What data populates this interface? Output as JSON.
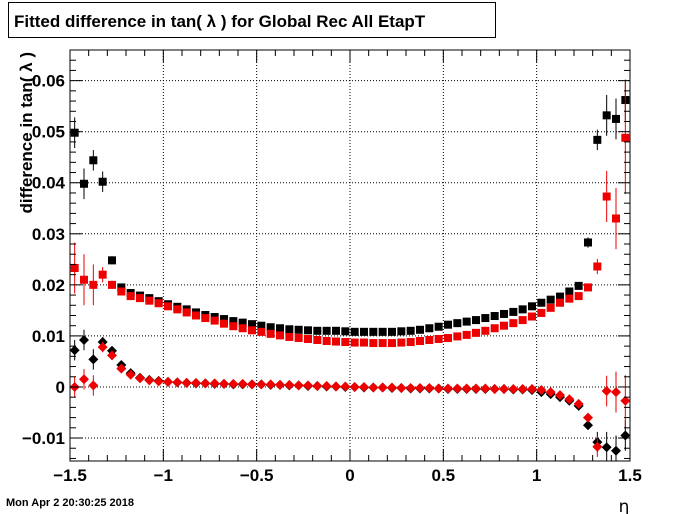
{
  "title": "Fitted difference in tan( λ ) for Global Rec All EtapT",
  "timestamp": "Mon Apr  2 20:30:25 2018",
  "chart_data": {
    "type": "scatter",
    "title": "Fitted difference in tan( λ ) for Global Rec All EtapT",
    "xlabel": "η",
    "ylabel": "difference in tan( λ )",
    "xlim": [
      -1.5,
      1.5
    ],
    "ylim": [
      -0.0145,
      0.066
    ],
    "grid": true,
    "x_ticks": [
      -1.5,
      -1,
      -0.5,
      0,
      0.5,
      1,
      1.5
    ],
    "x_tick_labels": [
      "−1.5",
      "−1",
      "−0.5",
      "0",
      "0.5",
      "1",
      "1.5"
    ],
    "y_ticks": [
      -0.01,
      0,
      0.01,
      0.02,
      0.03,
      0.04,
      0.05,
      0.06
    ],
    "y_tick_labels": [
      "−0.01",
      "0",
      "0.01",
      "0.02",
      "0.03",
      "0.04",
      "0.05",
      "0.06"
    ],
    "x": [
      -1.475,
      -1.425,
      -1.375,
      -1.325,
      -1.275,
      -1.225,
      -1.175,
      -1.125,
      -1.075,
      -1.025,
      -0.975,
      -0.925,
      -0.875,
      -0.825,
      -0.775,
      -0.725,
      -0.675,
      -0.625,
      -0.575,
      -0.525,
      -0.475,
      -0.425,
      -0.375,
      -0.325,
      -0.275,
      -0.225,
      -0.175,
      -0.125,
      -0.075,
      -0.025,
      0.025,
      0.075,
      0.125,
      0.175,
      0.225,
      0.275,
      0.325,
      0.375,
      0.425,
      0.475,
      0.525,
      0.575,
      0.625,
      0.675,
      0.725,
      0.775,
      0.825,
      0.875,
      0.925,
      0.975,
      1.025,
      1.075,
      1.125,
      1.175,
      1.225,
      1.275,
      1.325,
      1.375,
      1.425,
      1.475
    ],
    "series": [
      {
        "color": "#000000",
        "marker": "square",
        "values": [
          0.0498,
          0.0398,
          0.0444,
          0.0402,
          0.0248,
          0.0195,
          0.0184,
          0.0179,
          0.0174,
          0.0168,
          0.0162,
          0.0157,
          0.0152,
          0.0146,
          0.0141,
          0.0137,
          0.0133,
          0.0129,
          0.0126,
          0.0123,
          0.012,
          0.0117,
          0.0115,
          0.0113,
          0.0112,
          0.0111,
          0.011,
          0.011,
          0.011,
          0.0109,
          0.0108,
          0.0108,
          0.0108,
          0.0108,
          0.0108,
          0.0109,
          0.011,
          0.0112,
          0.0115,
          0.0118,
          0.0122,
          0.0125,
          0.0128,
          0.0131,
          0.0135,
          0.0139,
          0.0143,
          0.0147,
          0.0152,
          0.0158,
          0.0165,
          0.0171,
          0.0177,
          0.0187,
          0.0198,
          0.0283,
          0.0484,
          0.0532,
          0.0525,
          0.0562
        ],
        "errors": [
          0.003,
          0.003,
          0.002,
          0.002,
          0.0008,
          0.0005,
          0.0004,
          0.0003,
          0.0003,
          0.0003,
          0.0003,
          0.0003,
          0.0003,
          0.0003,
          0.0003,
          0.0003,
          0.0003,
          0.0003,
          0.0003,
          0.0003,
          0.0003,
          0.0003,
          0.0003,
          0.0003,
          0.0003,
          0.0003,
          0.0003,
          0.0003,
          0.0003,
          0.0003,
          0.0003,
          0.0003,
          0.0003,
          0.0003,
          0.0003,
          0.0003,
          0.0003,
          0.0003,
          0.0003,
          0.0003,
          0.0003,
          0.0003,
          0.0003,
          0.0003,
          0.0003,
          0.0003,
          0.0003,
          0.0003,
          0.0003,
          0.0003,
          0.0003,
          0.0003,
          0.0004,
          0.0004,
          0.0005,
          0.001,
          0.002,
          0.004,
          0.004,
          0.004
        ]
      },
      {
        "color": "#ee0000",
        "marker": "square",
        "values": [
          0.0233,
          0.021,
          0.02,
          0.022,
          0.02,
          0.0187,
          0.0178,
          0.0174,
          0.0169,
          0.0164,
          0.0158,
          0.0152,
          0.0146,
          0.014,
          0.0135,
          0.013,
          0.0124,
          0.0119,
          0.0115,
          0.0111,
          0.0108,
          0.0104,
          0.0101,
          0.0098,
          0.0096,
          0.0094,
          0.0092,
          0.009,
          0.0089,
          0.0088,
          0.0087,
          0.0087,
          0.0086,
          0.0086,
          0.0086,
          0.0087,
          0.0088,
          0.009,
          0.0092,
          0.0094,
          0.0096,
          0.0099,
          0.0102,
          0.0106,
          0.011,
          0.0115,
          0.012,
          0.0125,
          0.0131,
          0.0138,
          0.0145,
          0.0155,
          0.0165,
          0.0173,
          0.0178,
          0.0195,
          0.0236,
          0.0373,
          0.033,
          0.0488
        ],
        "errors": [
          0.005,
          0.005,
          0.004,
          0.0015,
          0.0008,
          0.0005,
          0.0004,
          0.0003,
          0.0003,
          0.0003,
          0.0003,
          0.0003,
          0.0003,
          0.0003,
          0.0003,
          0.0003,
          0.0003,
          0.0003,
          0.0003,
          0.0003,
          0.0003,
          0.0003,
          0.0003,
          0.0003,
          0.0003,
          0.0003,
          0.0003,
          0.0003,
          0.0003,
          0.0003,
          0.0003,
          0.0003,
          0.0003,
          0.0003,
          0.0003,
          0.0003,
          0.0003,
          0.0003,
          0.0003,
          0.0003,
          0.0003,
          0.0003,
          0.0003,
          0.0003,
          0.0003,
          0.0003,
          0.0003,
          0.0003,
          0.0003,
          0.0003,
          0.0003,
          0.0003,
          0.0004,
          0.0004,
          0.0005,
          0.0008,
          0.0015,
          0.005,
          0.006,
          0.011
        ]
      },
      {
        "color": "#000000",
        "marker": "diamond",
        "values": [
          0.0072,
          0.0092,
          0.0054,
          0.0088,
          0.0071,
          0.0043,
          0.0027,
          0.0018,
          0.0014,
          0.0012,
          0.001,
          0.0009,
          0.0008,
          0.0007,
          0.0007,
          0.0006,
          0.0006,
          0.0005,
          0.0005,
          0.0005,
          0.0005,
          0.0004,
          0.0004,
          0.0003,
          0.0003,
          0.0002,
          0.0002,
          0.0001,
          0.0001,
          0.0,
          0.0,
          -0.0001,
          -0.0001,
          -0.0001,
          -0.0002,
          -0.0002,
          -0.0003,
          -0.0003,
          -0.0003,
          -0.0003,
          -0.0004,
          -0.0004,
          -0.0004,
          -0.0004,
          -0.0004,
          -0.0004,
          -0.0004,
          -0.0005,
          -0.0005,
          -0.0006,
          -0.001,
          -0.0014,
          -0.002,
          -0.0027,
          -0.0037,
          -0.0075,
          -0.0108,
          -0.0118,
          -0.0125,
          -0.0095
        ],
        "errors": [
          0.002,
          0.002,
          0.002,
          0.001,
          0.0008,
          0.0005,
          0.0003,
          0.0002,
          0.0002,
          0.0002,
          0.0002,
          0.0002,
          0.0002,
          0.0002,
          0.0002,
          0.0002,
          0.0002,
          0.0002,
          0.0002,
          0.0002,
          0.0002,
          0.0002,
          0.0002,
          0.0002,
          0.0002,
          0.0002,
          0.0002,
          0.0002,
          0.0002,
          0.0002,
          0.0002,
          0.0002,
          0.0002,
          0.0002,
          0.0002,
          0.0002,
          0.0002,
          0.0002,
          0.0002,
          0.0002,
          0.0002,
          0.0002,
          0.0002,
          0.0002,
          0.0002,
          0.0002,
          0.0002,
          0.0002,
          0.0002,
          0.0002,
          0.0002,
          0.0002,
          0.0002,
          0.0002,
          0.0003,
          0.0008,
          0.002,
          0.003,
          0.003,
          0.003
        ]
      },
      {
        "color": "#ee0000",
        "marker": "diamond",
        "values": [
          0.0,
          0.0015,
          0.0003,
          0.0078,
          0.0062,
          0.0036,
          0.0024,
          0.0017,
          0.0013,
          0.0011,
          0.001,
          0.0009,
          0.0008,
          0.0008,
          0.0007,
          0.0007,
          0.0006,
          0.0006,
          0.0006,
          0.0005,
          0.0005,
          0.0005,
          0.0004,
          0.0004,
          0.0003,
          0.0003,
          0.0002,
          0.0002,
          0.0001,
          0.0001,
          0.0,
          0.0,
          -0.0001,
          -0.0001,
          -0.0001,
          -0.0002,
          -0.0002,
          -0.0002,
          -0.0002,
          -0.0003,
          -0.0003,
          -0.0003,
          -0.0003,
          -0.0003,
          -0.0003,
          -0.0004,
          -0.0004,
          -0.0004,
          -0.0004,
          -0.0004,
          -0.0006,
          -0.001,
          -0.0016,
          -0.0024,
          -0.0033,
          -0.006,
          -0.0117,
          -0.0008,
          -0.001,
          -0.0027
        ],
        "errors": [
          0.002,
          0.002,
          0.002,
          0.001,
          0.0008,
          0.0005,
          0.0003,
          0.0002,
          0.0002,
          0.0002,
          0.0002,
          0.0002,
          0.0002,
          0.0002,
          0.0002,
          0.0002,
          0.0002,
          0.0002,
          0.0002,
          0.0002,
          0.0002,
          0.0002,
          0.0002,
          0.0002,
          0.0002,
          0.0002,
          0.0002,
          0.0002,
          0.0002,
          0.0002,
          0.0002,
          0.0002,
          0.0002,
          0.0002,
          0.0002,
          0.0002,
          0.0002,
          0.0002,
          0.0002,
          0.0002,
          0.0002,
          0.0002,
          0.0002,
          0.0002,
          0.0002,
          0.0002,
          0.0002,
          0.0002,
          0.0002,
          0.0002,
          0.0002,
          0.0002,
          0.0002,
          0.0002,
          0.0003,
          0.0008,
          0.002,
          0.003,
          0.004,
          0.005
        ]
      }
    ]
  }
}
